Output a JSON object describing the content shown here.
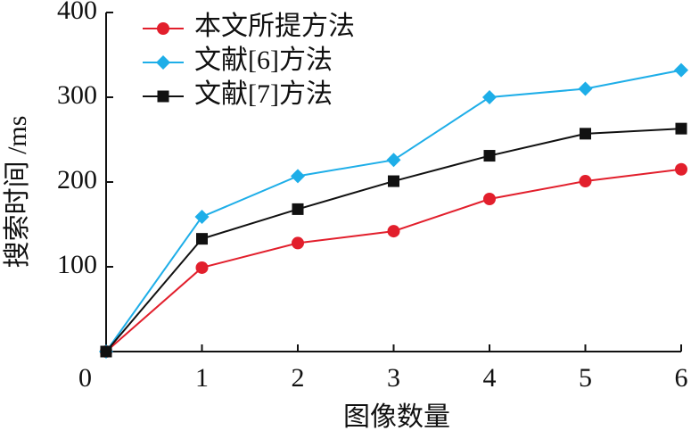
{
  "chart_data": {
    "type": "line",
    "x_label": "图像数量",
    "y_label": "搜索时间 /ms",
    "x": [
      0,
      1,
      2,
      3,
      4,
      5,
      6
    ],
    "series": [
      {
        "name": "本文所提方法",
        "color": "#e21f2c",
        "marker": "circle",
        "values": [
          0,
          99,
          128,
          142,
          180,
          201,
          215
        ]
      },
      {
        "name": "文献[6]方法",
        "color": "#1eaee8",
        "marker": "diamond",
        "values": [
          0,
          159,
          207,
          226,
          300,
          310,
          332
        ]
      },
      {
        "name": "文献[7]方法",
        "color": "#111111",
        "marker": "square",
        "values": [
          0,
          133,
          168,
          201,
          231,
          257,
          263
        ]
      }
    ],
    "xlim": [
      0,
      6
    ],
    "xticks": [
      0,
      1,
      2,
      3,
      4,
      5,
      6
    ],
    "ylim": [
      0,
      400
    ],
    "yticks": [
      100,
      200,
      300,
      400
    ],
    "legend": "upper-left",
    "grid": false
  }
}
